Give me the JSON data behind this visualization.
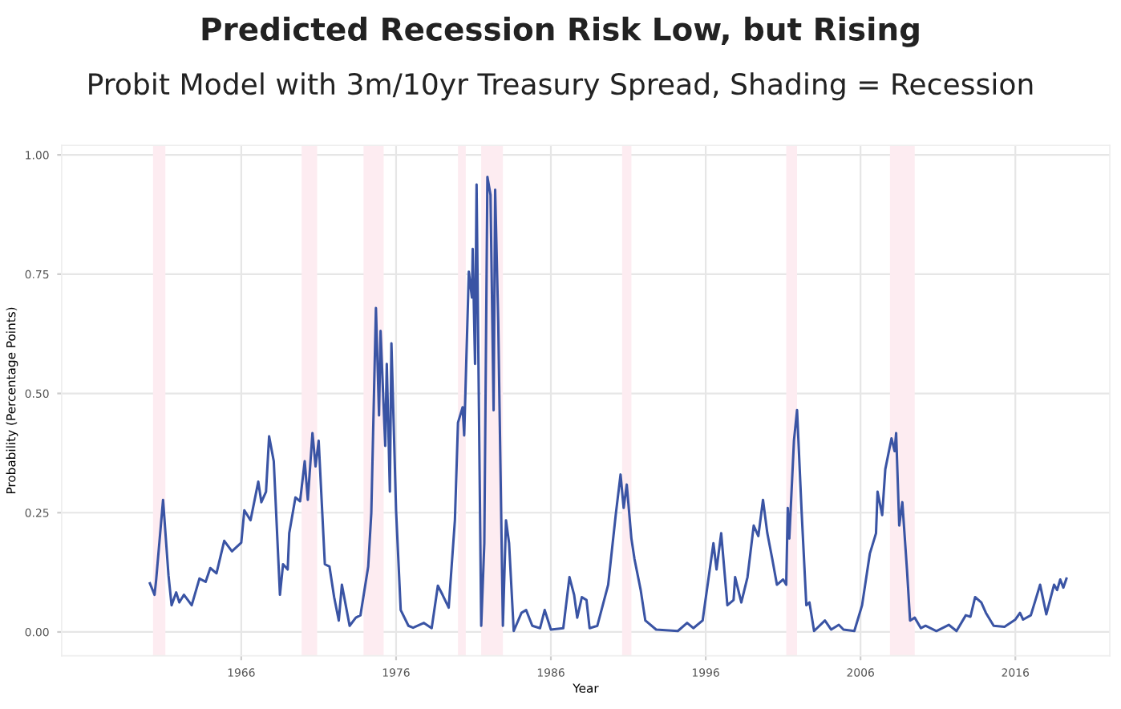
{
  "chart_data": {
    "type": "line",
    "title": "Predicted Recession Risk Low, but Rising",
    "subtitle": "Probit Model with 3m/10yr Treasury Spread, Shading = Recession",
    "xlabel": "Year",
    "ylabel": "Probability (Percentage Points)",
    "xlim": [
      1954.4,
      2022.1
    ],
    "ylim": [
      -0.05,
      1.02
    ],
    "xticks": [
      1966,
      1976,
      1986,
      1996,
      2006,
      2016
    ],
    "yticks": [
      {
        "value": 0,
        "label": "0.00"
      },
      {
        "value": 0.25,
        "label": "0.25"
      },
      {
        "value": 0.5,
        "label": "0.50"
      },
      {
        "value": 0.75,
        "label": "0.75"
      },
      {
        "value": 1,
        "label": "1.00"
      }
    ],
    "grid": true,
    "marker": "none",
    "line_style": "solid",
    "bands": [
      {
        "axis": "x",
        "from": 1960.3,
        "to": 1961.1,
        "color": "#fdecf1"
      },
      {
        "axis": "x",
        "from": 1969.9,
        "to": 1970.9,
        "color": "#fdecf1"
      },
      {
        "axis": "x",
        "from": 1973.9,
        "to": 1975.2,
        "color": "#fdecf1"
      },
      {
        "axis": "x",
        "from": 1980.0,
        "to": 1980.5,
        "color": "#fdecf1"
      },
      {
        "axis": "x",
        "from": 1981.5,
        "to": 1982.9,
        "color": "#fdecf1"
      },
      {
        "axis": "x",
        "from": 1990.6,
        "to": 1991.2,
        "color": "#fdecf1"
      },
      {
        "axis": "x",
        "from": 2001.2,
        "to": 2001.9,
        "color": "#fdecf1"
      },
      {
        "axis": "x",
        "from": 2007.9,
        "to": 2009.5,
        "color": "#fdecf1"
      }
    ],
    "series": [
      {
        "color": "#3a54a4",
        "x": [
          1960.1,
          1960.4,
          1960.5,
          1960.95,
          1961.3,
          1961.5,
          1961.8,
          1962.0,
          1962.3,
          1962.8,
          1963.3,
          1963.7,
          1964.0,
          1964.4,
          1964.9,
          1965.4,
          1966.0,
          1966.2,
          1966.6,
          1967.1,
          1967.3,
          1967.6,
          1967.8,
          1968.1,
          1968.5,
          1968.7,
          1969.0,
          1969.1,
          1969.5,
          1969.8,
          1970.1,
          1970.3,
          1970.6,
          1970.8,
          1971.0,
          1971.4,
          1971.7,
          1972.0,
          1972.3,
          1972.5,
          1973.0,
          1973.4,
          1973.7,
          1974.2,
          1974.4,
          1974.7,
          1974.9,
          1975.0,
          1975.3,
          1975.4,
          1975.6,
          1975.7,
          1976.0,
          1976.3,
          1976.8,
          1977.1,
          1977.8,
          1978.3,
          1978.7,
          1979.0,
          1979.4,
          1979.8,
          1980.0,
          1980.3,
          1980.4,
          1980.7,
          1980.9,
          1980.95,
          1981.1,
          1981.2,
          1981.5,
          1981.7,
          1981.9,
          1982.1,
          1982.3,
          1982.4,
          1982.6,
          1982.9,
          1983.1,
          1983.3,
          1983.6,
          1984.1,
          1984.4,
          1984.8,
          1985.3,
          1985.6,
          1986.0,
          1986.8,
          1987.2,
          1987.5,
          1987.7,
          1988.0,
          1988.3,
          1988.5,
          1989.0,
          1989.7,
          1990.2,
          1990.5,
          1990.7,
          1990.9,
          1991.2,
          1991.4,
          1991.8,
          1992.1,
          1992.8,
          1994.2,
          1994.8,
          1995.2,
          1995.8,
          1996.5,
          1996.7,
          1997.0,
          1997.4,
          1997.8,
          1997.9,
          1998.3,
          1998.7,
          1999.1,
          1999.4,
          1999.7,
          1999.98,
          2000.3,
          2000.6,
          2001.0,
          2001.2,
          2001.3,
          2001.4,
          2001.7,
          2001.9,
          2002.2,
          2002.5,
          2002.7,
          2003.0,
          2003.7,
          2004.1,
          2004.6,
          2004.9,
          2005.6,
          2006.1,
          2006.6,
          2007.0,
          2007.1,
          2007.4,
          2007.6,
          2008.0,
          2008.2,
          2008.3,
          2008.5,
          2008.7,
          2009.0,
          2009.2,
          2009.5,
          2009.9,
          2010.2,
          2010.9,
          2011.7,
          2012.2,
          2012.8,
          2013.1,
          2013.4,
          2013.8,
          2014.1,
          2014.6,
          2015.3,
          2016.0,
          2016.3,
          2016.5,
          2017.0,
          2017.3,
          2017.6,
          2018.0,
          2018.5,
          2018.7,
          2018.9,
          2019.1,
          2019.3
        ],
        "values": [
          0.102,
          0.078,
          0.108,
          0.277,
          0.119,
          0.056,
          0.083,
          0.062,
          0.078,
          0.056,
          0.112,
          0.105,
          0.134,
          0.123,
          0.191,
          0.169,
          0.187,
          0.255,
          0.234,
          0.315,
          0.272,
          0.294,
          0.41,
          0.358,
          0.078,
          0.142,
          0.131,
          0.207,
          0.282,
          0.274,
          0.358,
          0.277,
          0.417,
          0.347,
          0.401,
          0.142,
          0.137,
          0.073,
          0.024,
          0.099,
          0.013,
          0.03,
          0.035,
          0.137,
          0.249,
          0.679,
          0.454,
          0.631,
          0.39,
          0.562,
          0.294,
          0.605,
          0.255,
          0.046,
          0.013,
          0.009,
          0.019,
          0.008,
          0.097,
          0.078,
          0.051,
          0.234,
          0.439,
          0.471,
          0.412,
          0.755,
          0.701,
          0.803,
          0.562,
          0.938,
          0.013,
          0.186,
          0.954,
          0.916,
          0.465,
          0.927,
          0.648,
          0.013,
          0.234,
          0.186,
          0.002,
          0.04,
          0.046,
          0.013,
          0.008,
          0.046,
          0.005,
          0.008,
          0.115,
          0.078,
          0.03,
          0.073,
          0.067,
          0.008,
          0.013,
          0.099,
          0.249,
          0.33,
          0.26,
          0.309,
          0.196,
          0.153,
          0.088,
          0.024,
          0.005,
          0.002,
          0.019,
          0.008,
          0.024,
          0.186,
          0.131,
          0.207,
          0.056,
          0.067,
          0.115,
          0.062,
          0.115,
          0.223,
          0.201,
          0.277,
          0.207,
          0.153,
          0.099,
          0.11,
          0.099,
          0.26,
          0.196,
          0.401,
          0.465,
          0.249,
          0.056,
          0.062,
          0.002,
          0.024,
          0.005,
          0.015,
          0.005,
          0.002,
          0.056,
          0.164,
          0.207,
          0.294,
          0.245,
          0.341,
          0.406,
          0.379,
          0.417,
          0.223,
          0.272,
          0.131,
          0.024,
          0.03,
          0.008,
          0.013,
          0.002,
          0.015,
          0.002,
          0.035,
          0.032,
          0.073,
          0.062,
          0.04,
          0.013,
          0.011,
          0.026,
          0.04,
          0.026,
          0.035,
          0.067,
          0.099,
          0.037,
          0.099,
          0.088,
          0.11,
          0.093,
          0.112
        ]
      }
    ]
  }
}
